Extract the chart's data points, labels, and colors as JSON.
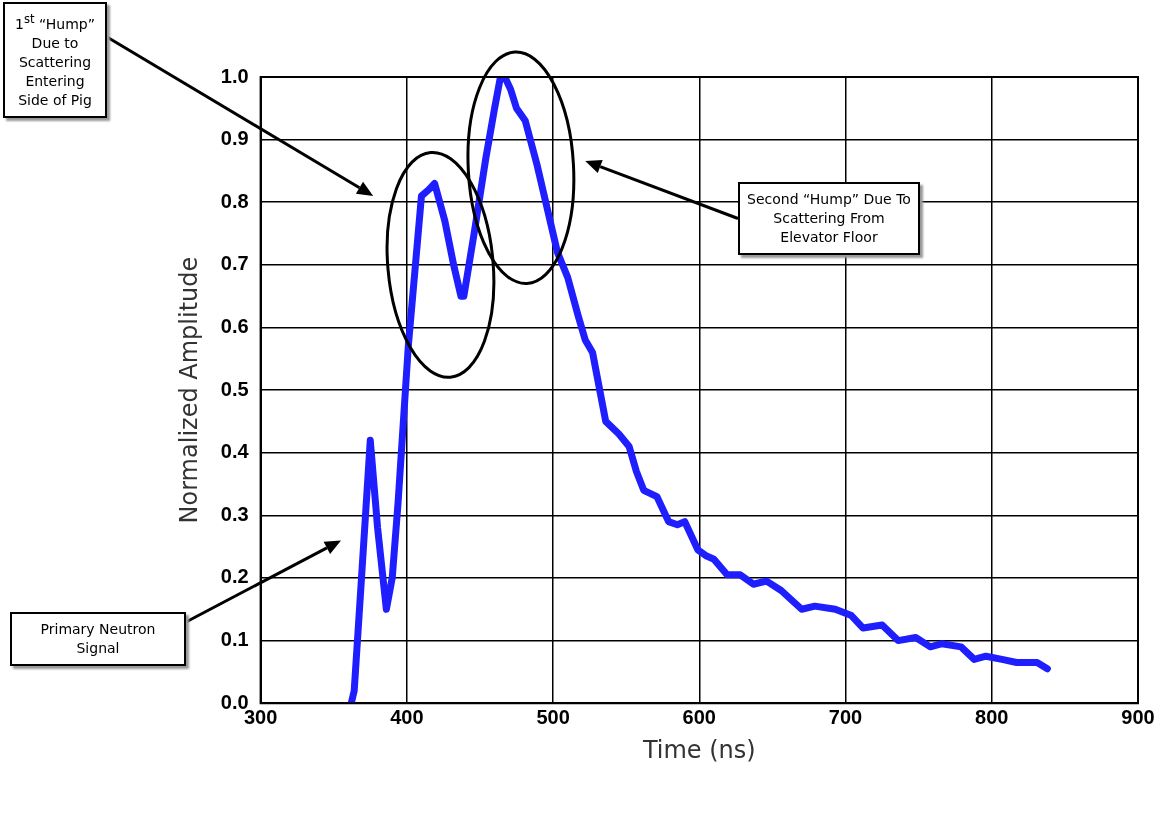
{
  "chart_data": {
    "type": "line",
    "xlabel": "Time (ns)",
    "ylabel": "Normalized Amplitude",
    "xlim": [
      300,
      900
    ],
    "xticks": [
      300,
      400,
      500,
      600,
      700,
      800,
      900
    ],
    "ylim": [
      0,
      1
    ],
    "yticks": [
      {
        "value": 0,
        "label": "0.0"
      },
      {
        "value": 0.1,
        "label": "0.1"
      },
      {
        "value": 0.2,
        "label": "0.2"
      },
      {
        "value": 0.3,
        "label": "0.3"
      },
      {
        "value": 0.4,
        "label": "0.4"
      },
      {
        "value": 0.5,
        "label": "0.5"
      },
      {
        "value": 0.6,
        "label": "0.6"
      },
      {
        "value": 0.7,
        "label": "0.7"
      },
      {
        "value": 0.8,
        "label": "0.8"
      },
      {
        "value": 0.9,
        "label": "0.9"
      },
      {
        "value": 1,
        "label": "1.0"
      }
    ],
    "grid": true,
    "legend": false,
    "marker": "none",
    "line_style": "solid",
    "series": [
      {
        "color": "#1e1eff",
        "x": [
          362,
          364,
          369,
          375,
          380,
          386,
          390,
          394,
          401,
          407,
          410,
          415,
          419,
          426,
          432,
          437,
          439,
          446,
          454,
          460,
          464,
          467,
          471,
          475,
          481,
          489,
          495,
          503,
          510,
          517,
          522,
          527,
          536,
          545,
          552,
          557,
          562,
          571,
          579,
          585,
          590,
          599,
          605,
          610,
          619,
          628,
          637,
          646,
          656,
          670,
          679,
          693,
          704,
          712,
          725,
          736,
          748,
          758,
          766,
          779,
          788,
          796,
          807,
          817,
          831,
          838
        ],
        "values": [
          0,
          0.02,
          0.2,
          0.42,
          0.28,
          0.15,
          0.2,
          0.32,
          0.57,
          0.73,
          0.81,
          0.82,
          0.83,
          0.77,
          0.7,
          0.65,
          0.65,
          0.75,
          0.87,
          0.95,
          1.0,
          1.0,
          0.98,
          0.95,
          0.93,
          0.86,
          0.8,
          0.72,
          0.68,
          0.62,
          0.58,
          0.56,
          0.45,
          0.43,
          0.41,
          0.37,
          0.34,
          0.33,
          0.29,
          0.285,
          0.29,
          0.245,
          0.235,
          0.23,
          0.205,
          0.205,
          0.19,
          0.195,
          0.18,
          0.15,
          0.155,
          0.15,
          0.14,
          0.12,
          0.125,
          0.1,
          0.105,
          0.09,
          0.095,
          0.09,
          0.07,
          0.075,
          0.07,
          0.065,
          0.065,
          0.055
        ]
      }
    ],
    "annotations": [
      "1$^{st}$ “Hump” Due to Scattering Entering Side of Pig",
      "Second “Hump” Due To Scattering From Elevator Floor",
      "Primary Neutron Signal"
    ]
  }
}
